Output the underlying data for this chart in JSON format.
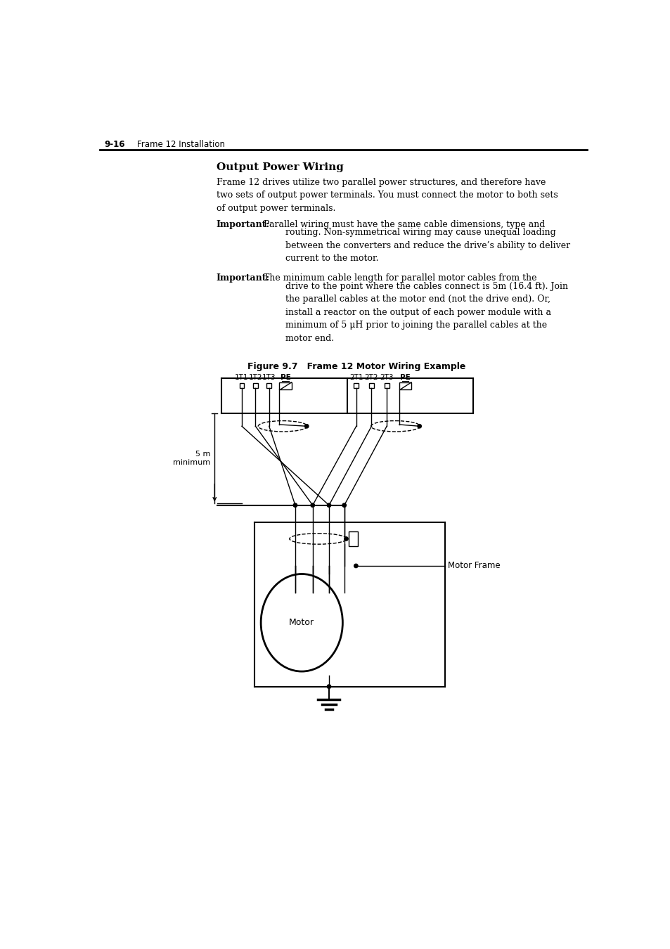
{
  "page_header_number": "9-16",
  "page_header_text": "Frame 12 Installation",
  "title": "Output Power Wiring",
  "body_text_1": "Frame 12 drives utilize two parallel power structures, and therefore have\ntwo sets of output power terminals. You must connect the motor to both sets\nof output power terminals.",
  "important_1_bold": "Important:",
  "important_1_text_line1": "Parallel wiring must have the same cable dimensions, type and",
  "important_1_text_rest": "routing. Non-symmetrical wiring may cause unequal loading\nbetween the converters and reduce the drive’s ability to deliver\ncurrent to the motor.",
  "important_2_bold": "Important:",
  "important_2_text_line1": "The minimum cable length for parallel motor cables from the",
  "important_2_text_rest": "drive to the point where the cables connect is 5m (16.4 ft). Join\nthe parallel cables at the motor end (not the drive end). Or,\ninstall a reactor on the output of each power module with a\nminimum of 5 μH prior to joining the parallel cables at the\nmotor end.",
  "figure_caption": "Figure 9.7   Frame 12 Motor Wiring Example",
  "terminal_labels_left": [
    "1T1",
    "1T2",
    "1T3",
    "PE"
  ],
  "terminal_labels_right": [
    "2T1",
    "2T2",
    "2T3",
    "PE"
  ],
  "label_5m": "5 m\nminimum",
  "label_motor": "Motor",
  "label_motor_frame": "Motor Frame",
  "bg_color": "#ffffff",
  "line_color": "#000000"
}
